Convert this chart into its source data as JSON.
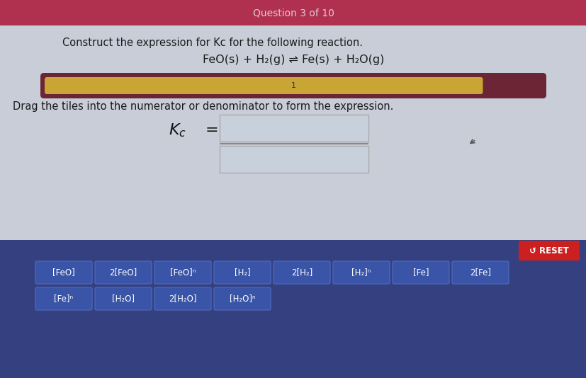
{
  "title": "Question 3 of 10",
  "title_bg": "#b03050",
  "content_bg": "#c8cdd8",
  "question_text": "Construct the expression for Kc for the following reaction.",
  "reaction_text": "FeO(s) + H₂(g) ⇌ Fe(s) + H₂O(g)",
  "drag_text": "Drag the tiles into the numerator or denominator to form the expression.",
  "progress_bar_bg": "#6b2535",
  "progress_bar_fill": "#c9a535",
  "progress_value": 0.88,
  "bottom_bg": "#354080",
  "reset_btn_color": "#cc2020",
  "reset_text": "RESET",
  "tiles_row1": [
    "[FeO]",
    "2[FeO]",
    "[FeO]ⁿ",
    "[H₂]",
    "2[H₂]",
    "[H₂]ⁿ",
    "[Fe]",
    "2[Fe]"
  ],
  "tiles_row2": [
    "[Fe]ⁿ",
    "[H₂O]",
    "2[H₂O]",
    "[H₂O]ⁿ"
  ],
  "tile_color": "#3a55a8",
  "tile_text_color": "#ffffff",
  "tile_border_color": "#4a65b8",
  "frac_box_color": "#c8d0dc",
  "frac_box_edge": "#aaaaaa"
}
